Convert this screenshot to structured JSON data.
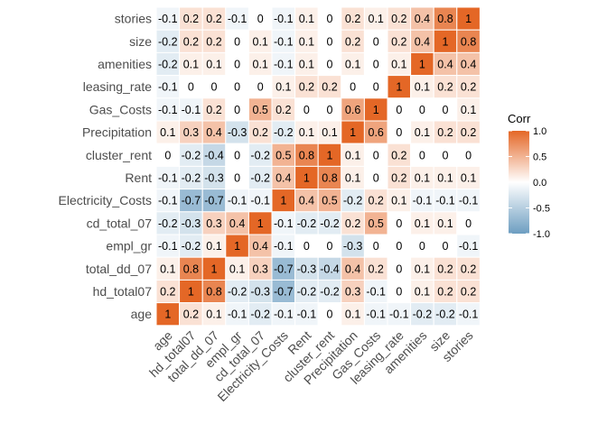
{
  "chart_data": {
    "type": "heatmap",
    "title": "",
    "xlabel": "",
    "ylabel": "",
    "x_labels": [
      "age",
      "hd_total07",
      "total_dd_07",
      "empl_gr",
      "cd_total_07",
      "Electricity_Costs",
      "Rent",
      "cluster_rent",
      "Precipitation",
      "Gas_Costs",
      "leasing_rate",
      "amenities",
      "size",
      "stories"
    ],
    "y_labels_top_to_bottom": [
      "stories",
      "size",
      "amenities",
      "leasing_rate",
      "Gas_Costs",
      "Precipitation",
      "cluster_rent",
      "Rent",
      "Electricity_Costs",
      "cd_total_07",
      "empl_gr",
      "total_dd_07",
      "hd_total07",
      "age"
    ],
    "values": [
      [
        -0.1,
        0.2,
        0.2,
        -0.1,
        0,
        -0.1,
        0.1,
        0,
        0.2,
        0.1,
        0.2,
        0.4,
        0.8,
        1
      ],
      [
        -0.2,
        0.2,
        0.2,
        0,
        0.1,
        -0.1,
        0.1,
        0,
        0.2,
        0,
        0.2,
        0.4,
        1,
        0.8
      ],
      [
        -0.2,
        0.1,
        0.1,
        0,
        0.1,
        -0.1,
        0.1,
        0,
        0.1,
        0,
        0.1,
        1,
        0.4,
        0.4
      ],
      [
        -0.1,
        0,
        0,
        0,
        0,
        0.1,
        0.2,
        0.2,
        0,
        0,
        1,
        0.1,
        0.2,
        0.2
      ],
      [
        -0.1,
        -0.1,
        0.2,
        0,
        0.5,
        0.2,
        0,
        0,
        0.6,
        1,
        0,
        0,
        0,
        0.1
      ],
      [
        0.1,
        0.3,
        0.4,
        -0.3,
        0.2,
        -0.2,
        0.1,
        0.1,
        1,
        0.6,
        0,
        0.1,
        0.2,
        0.2
      ],
      [
        0,
        -0.2,
        -0.4,
        0,
        -0.2,
        0.5,
        0.8,
        1,
        0.1,
        0,
        0.2,
        0,
        0,
        0
      ],
      [
        -0.1,
        -0.2,
        -0.3,
        0,
        -0.2,
        0.4,
        1,
        0.8,
        0.1,
        0,
        0.2,
        0.1,
        0.1,
        0.1
      ],
      [
        -0.1,
        -0.7,
        -0.7,
        -0.1,
        -0.1,
        1,
        0.4,
        0.5,
        -0.2,
        0.2,
        0.1,
        -0.1,
        -0.1,
        -0.1
      ],
      [
        -0.2,
        -0.3,
        0.3,
        0.4,
        1,
        -0.1,
        -0.2,
        -0.2,
        0.2,
        0.5,
        0,
        0.1,
        0.1,
        0
      ],
      [
        -0.1,
        -0.2,
        0.1,
        1,
        0.4,
        -0.1,
        0,
        0,
        -0.3,
        0,
        0,
        0,
        0,
        -0.1
      ],
      [
        0.1,
        0.8,
        1,
        0.1,
        0.3,
        -0.7,
        -0.3,
        -0.4,
        0.4,
        0.2,
        0,
        0.1,
        0.2,
        0.2
      ],
      [
        0.2,
        1,
        0.8,
        -0.2,
        -0.3,
        -0.7,
        -0.2,
        -0.2,
        0.3,
        -0.1,
        0,
        0.1,
        0.2,
        0.2
      ],
      [
        1,
        0.2,
        0.1,
        -0.1,
        -0.2,
        -0.1,
        -0.1,
        0,
        0.1,
        -0.1,
        -0.1,
        -0.2,
        -0.2,
        -0.1
      ]
    ],
    "color_range": [
      -1,
      1
    ],
    "colors": {
      "low": "#6d9ec1",
      "mid": "#ffffff",
      "high": "#e46726"
    },
    "legend": {
      "title": "Corr",
      "ticks": [
        "1.0",
        "0.5",
        "0.0",
        "-0.5",
        "-1.0"
      ],
      "placement": "right"
    },
    "grid": false
  }
}
